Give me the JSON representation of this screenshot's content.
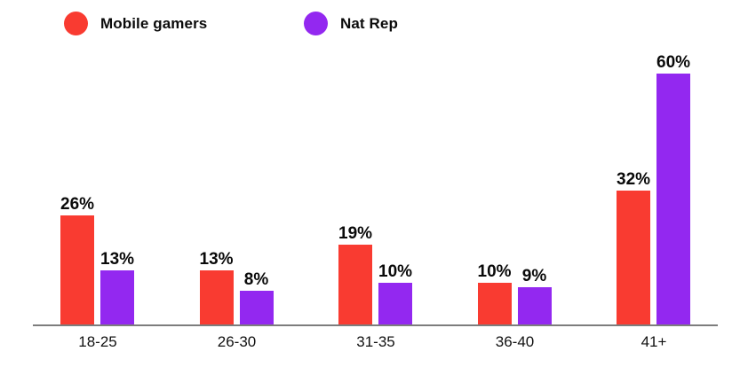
{
  "legend": {
    "items": [
      {
        "label": "Mobile gamers",
        "color": "#f93b31"
      },
      {
        "label": "Nat Rep",
        "color": "#9328f0"
      }
    ]
  },
  "chart_data": {
    "type": "bar",
    "categories": [
      "18-25",
      "26-30",
      "31-35",
      "36-40",
      "41+"
    ],
    "series": [
      {
        "name": "Mobile gamers",
        "color": "#f93b31",
        "values": [
          26,
          13,
          19,
          10,
          32
        ]
      },
      {
        "name": "Nat Rep",
        "color": "#9328f0",
        "values": [
          13,
          8,
          10,
          9,
          60
        ]
      }
    ],
    "value_suffix": "%",
    "data_labels": [
      "26%",
      "13%",
      "19%",
      "10%",
      "32%",
      "13%",
      "8%",
      "10%",
      "9%",
      "60%"
    ],
    "title": "",
    "xlabel": "",
    "ylabel": "",
    "ylim": [
      0,
      65
    ],
    "grid": false,
    "legend_position": "top-left",
    "axis_line_color": "#7d7d7d",
    "background_color": "#ffffff",
    "text_color": "#0b0b0b"
  }
}
